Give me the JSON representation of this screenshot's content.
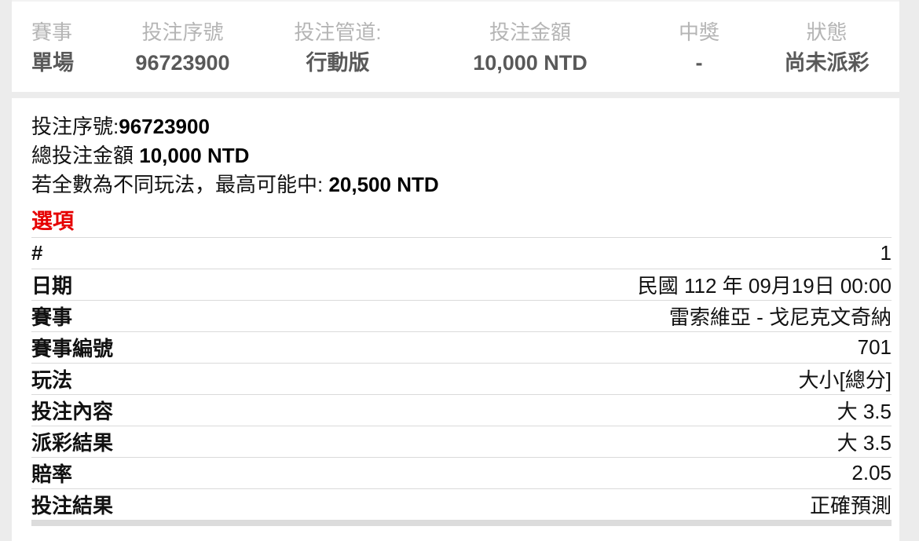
{
  "summary": {
    "columns": [
      {
        "label": "賽事",
        "value": "單場"
      },
      {
        "label": "投注序號",
        "value": "96723900"
      },
      {
        "label": "投注管道:",
        "value": "行動版"
      },
      {
        "label": "投注金額",
        "value": "10,000 NTD"
      },
      {
        "label": "中獎",
        "value": "-"
      },
      {
        "label": "狀態",
        "value": "尚未派彩"
      }
    ]
  },
  "detail": {
    "serial_label": "投注序號:",
    "serial_value": "96723900",
    "total_label": "總投注金額 ",
    "total_value": "10,000 NTD",
    "max_win_label": "若全數為不同玩法，最高可能中: ",
    "max_win_value": "20,500 NTD",
    "options_heading": "選項",
    "rows": [
      {
        "label": "#",
        "value": "1"
      },
      {
        "label": "日期",
        "value": "民國 112 年 09月19日 00:00"
      },
      {
        "label": "賽事",
        "value": "雷索維亞 - 戈尼克文奇納"
      },
      {
        "label": "賽事編號",
        "value": "701"
      },
      {
        "label": "玩法",
        "value": "大小[總分]"
      },
      {
        "label": "投注內容",
        "value": "大 3.5"
      },
      {
        "label": "派彩結果",
        "value": "大 3.5"
      },
      {
        "label": "賠率",
        "value": "2.05"
      },
      {
        "label": "投注結果",
        "value": "正確預測"
      }
    ]
  },
  "colors": {
    "accent_red": "#e60000",
    "page_bg": "#ececec",
    "muted_label": "#b5b5b5",
    "summary_value": "#595959",
    "divider": "#dadada",
    "bottom_band": "#dcdcdc"
  }
}
